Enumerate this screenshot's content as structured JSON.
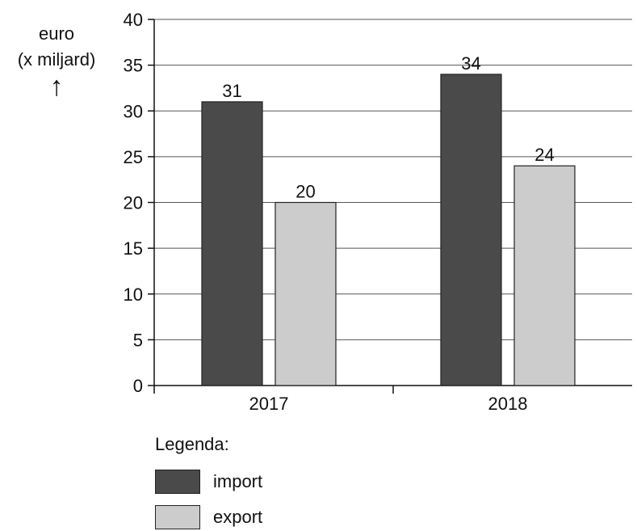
{
  "chart_data": {
    "type": "bar",
    "categories": [
      "2017",
      "2018"
    ],
    "series": [
      {
        "name": "import",
        "values": [
          31,
          34
        ],
        "color": "#4a4a4a"
      },
      {
        "name": "export",
        "values": [
          20,
          24
        ],
        "color": "#cccccc"
      }
    ],
    "ylim": [
      0,
      40
    ],
    "yticks": [
      0,
      5,
      10,
      15,
      20,
      25,
      30,
      35,
      40
    ],
    "ylabel": [
      "euro",
      "(x miljard)"
    ],
    "ylabel_arrow": "↑",
    "grid": "horizontal",
    "data_labels": true,
    "legend": {
      "title": "Legenda:",
      "placement": "bottom"
    }
  }
}
